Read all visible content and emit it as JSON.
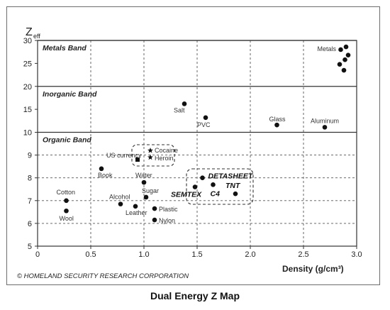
{
  "chart_data": {
    "type": "scatter",
    "title": "",
    "footer_caption": "Dual Energy Z Map",
    "credit": "© HOMELAND SECURITY RESEARCH CORPORATION",
    "ylabel": "Z",
    "ylabel_subscript": "eff",
    "xlabel": "Density (g/cm³)",
    "xlim": [
      0,
      3.0
    ],
    "ylim": [
      5,
      30
    ],
    "xticks": [
      "0",
      "0.5",
      "1.0",
      "1.5",
      "2.0",
      "2.5",
      "3.0"
    ],
    "yticks": [
      "5",
      "6",
      "7",
      "8",
      "9",
      "10",
      "15",
      "20",
      "25",
      "30"
    ],
    "bands": [
      {
        "name": "Metals Band",
        "y": 30
      },
      {
        "name": "Inorganic Band",
        "y": 20
      },
      {
        "name": "Organic Band",
        "y": 10
      }
    ],
    "points": [
      {
        "label": "Cotton",
        "x": 0.27,
        "y": 7.0,
        "marker": "circle"
      },
      {
        "label": "Wool",
        "x": 0.27,
        "y": 6.55,
        "marker": "circle"
      },
      {
        "label": "Book",
        "x": 0.6,
        "y": 8.4,
        "marker": "circle"
      },
      {
        "label": "Alcohol",
        "x": 0.78,
        "y": 6.85,
        "marker": "circle"
      },
      {
        "label": "Leather",
        "x": 0.92,
        "y": 6.75,
        "marker": "circle"
      },
      {
        "label": "US currency",
        "x": 0.94,
        "y": 8.8,
        "marker": "square"
      },
      {
        "label": "Cocaine",
        "x": 1.06,
        "y": 9.2,
        "marker": "star"
      },
      {
        "label": "Heroin",
        "x": 1.06,
        "y": 8.9,
        "marker": "star"
      },
      {
        "label": "Water",
        "x": 1.0,
        "y": 7.8,
        "marker": "circle"
      },
      {
        "label": "Sugar",
        "x": 1.02,
        "y": 7.15,
        "marker": "circle"
      },
      {
        "label": "Plastic",
        "x": 1.1,
        "y": 6.65,
        "marker": "circle"
      },
      {
        "label": "Nylon",
        "x": 1.1,
        "y": 6.15,
        "marker": "circle"
      },
      {
        "label": "Salt",
        "x": 1.38,
        "y": 16.2,
        "marker": "circle"
      },
      {
        "label": "PVC",
        "x": 1.58,
        "y": 13.2,
        "marker": "circle"
      },
      {
        "label": "SEMTEX",
        "x": 1.48,
        "y": 7.6,
        "marker": "circle"
      },
      {
        "label": "DETASHEET",
        "x": 1.55,
        "y": 8.0,
        "marker": "circle"
      },
      {
        "label": "C4",
        "x": 1.65,
        "y": 7.7,
        "marker": "circle"
      },
      {
        "label": "TNT",
        "x": 1.86,
        "y": 7.3,
        "marker": "circle"
      },
      {
        "label": "Glass",
        "x": 2.25,
        "y": 11.6,
        "marker": "circle"
      },
      {
        "label": "Aluminum",
        "x": 2.7,
        "y": 11.1,
        "marker": "circle"
      },
      {
        "label": "Metals",
        "x": 2.85,
        "y": 28.0,
        "marker": "circle"
      },
      {
        "label": "",
        "x": 2.9,
        "y": 28.6,
        "marker": "circle"
      },
      {
        "label": "",
        "x": 2.92,
        "y": 26.8,
        "marker": "circle"
      },
      {
        "label": "",
        "x": 2.89,
        "y": 25.8,
        "marker": "circle"
      },
      {
        "label": "",
        "x": 2.84,
        "y": 24.8,
        "marker": "circle"
      },
      {
        "label": "",
        "x": 2.88,
        "y": 23.5,
        "marker": "circle"
      }
    ]
  }
}
